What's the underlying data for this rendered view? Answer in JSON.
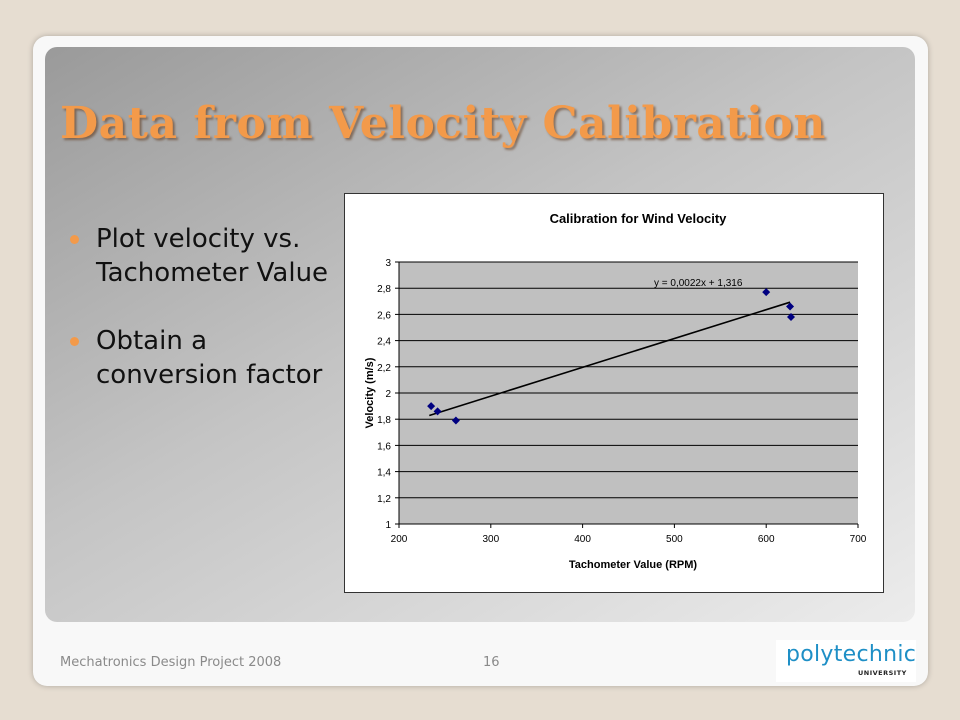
{
  "slide": {
    "title": "Data from Velocity Calibration",
    "bullets": [
      "Plot velocity vs. Tachometer Value",
      "Obtain a conversion factor"
    ],
    "footer": {
      "text": "Mechatronics Design Project 2008",
      "page": "16"
    },
    "logo": {
      "word": "polytechnic",
      "sub": "UNIVERSITY"
    },
    "colors": {
      "title": "#f39a4a",
      "bullet": "#f39a4a",
      "marker": "#000080",
      "logo": "#1e8fc6"
    }
  },
  "chart_data": {
    "type": "scatter",
    "title": "Calibration for Wind Velocity",
    "xlabel": "Tachometer Value (RPM)",
    "ylabel": "Velocity (m/s)",
    "xlim": [
      200,
      700
    ],
    "ylim": [
      1,
      3
    ],
    "xticks": [
      "200",
      "300",
      "400",
      "500",
      "600",
      "700"
    ],
    "yticks": [
      "1",
      "1,2",
      "1,4",
      "1,6",
      "1,8",
      "2",
      "2,2",
      "2,4",
      "2,6",
      "2,8",
      "3"
    ],
    "grid": "horizontal",
    "points": [
      {
        "x": 235,
        "y": 1.9
      },
      {
        "x": 242,
        "y": 1.86
      },
      {
        "x": 262,
        "y": 1.79
      },
      {
        "x": 600,
        "y": 2.77
      },
      {
        "x": 626,
        "y": 2.66
      },
      {
        "x": 627,
        "y": 2.58
      }
    ],
    "trendline": {
      "equation": "y = 0,0022x + 1,316",
      "slope": 0.0022,
      "intercept": 1.316,
      "x_from": 233,
      "x_to": 626
    }
  }
}
